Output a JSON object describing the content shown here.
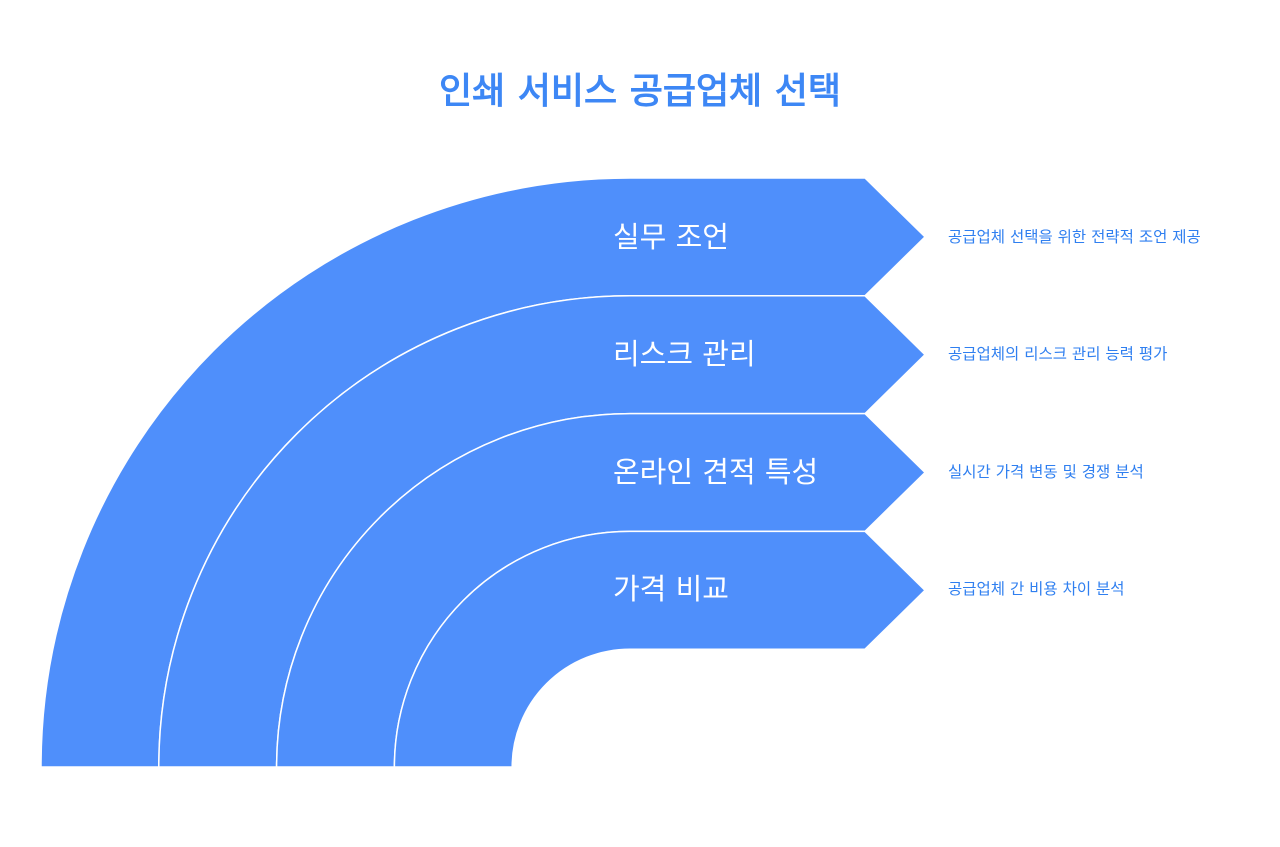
{
  "title": "인쇄 서비스 공급업체 선택",
  "colors": {
    "band": "#4f8ffb",
    "title": "#3d87f5",
    "description": "#2f7ff0"
  },
  "layers": [
    {
      "label": "실무 조언",
      "description": "공급업체 선택을 위한 전략적 조언 제공"
    },
    {
      "label": "리스크 관리",
      "description": "공급업체의 리스크 관리 능력 평가"
    },
    {
      "label": "온라인 견적 특성",
      "description": "실시간 가격 변동 및 경쟁 분석"
    },
    {
      "label": "가격 비교",
      "description": "공급업체 간 비용 차이 분석"
    }
  ]
}
